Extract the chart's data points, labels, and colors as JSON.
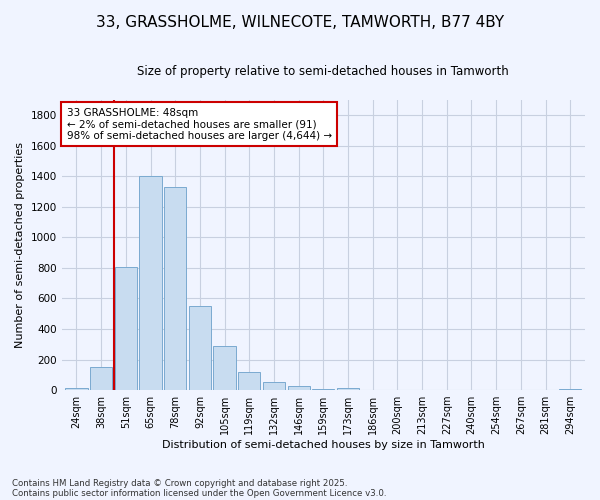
{
  "title_line1": "33, GRASSHOLME, WILNECOTE, TAMWORTH, B77 4BY",
  "title_line2": "Size of property relative to semi-detached houses in Tamworth",
  "xlabel": "Distribution of semi-detached houses by size in Tamworth",
  "ylabel": "Number of semi-detached properties",
  "categories": [
    "24sqm",
    "38sqm",
    "51sqm",
    "65sqm",
    "78sqm",
    "92sqm",
    "105sqm",
    "119sqm",
    "132sqm",
    "146sqm",
    "159sqm",
    "173sqm",
    "186sqm",
    "200sqm",
    "213sqm",
    "227sqm",
    "240sqm",
    "254sqm",
    "267sqm",
    "281sqm",
    "294sqm"
  ],
  "values": [
    15,
    148,
    805,
    1400,
    1330,
    550,
    290,
    120,
    50,
    25,
    5,
    15,
    0,
    0,
    0,
    0,
    0,
    0,
    0,
    0,
    5
  ],
  "bar_color": "#c8dcf0",
  "bar_edge_color": "#7aaad0",
  "vline_color": "#cc0000",
  "vline_x_index": 1.5,
  "annotation_text": "33 GRASSHOLME: 48sqm\n← 2% of semi-detached houses are smaller (91)\n98% of semi-detached houses are larger (4,644) →",
  "annotation_box_color": "#ffffff",
  "annotation_box_edge_color": "#cc0000",
  "ylim": [
    0,
    1900
  ],
  "yticks": [
    0,
    200,
    400,
    600,
    800,
    1000,
    1200,
    1400,
    1600,
    1800
  ],
  "footer_line1": "Contains HM Land Registry data © Crown copyright and database right 2025.",
  "footer_line2": "Contains public sector information licensed under the Open Government Licence v3.0.",
  "bg_color": "#f0f4ff",
  "grid_color": "#c8d0e0"
}
